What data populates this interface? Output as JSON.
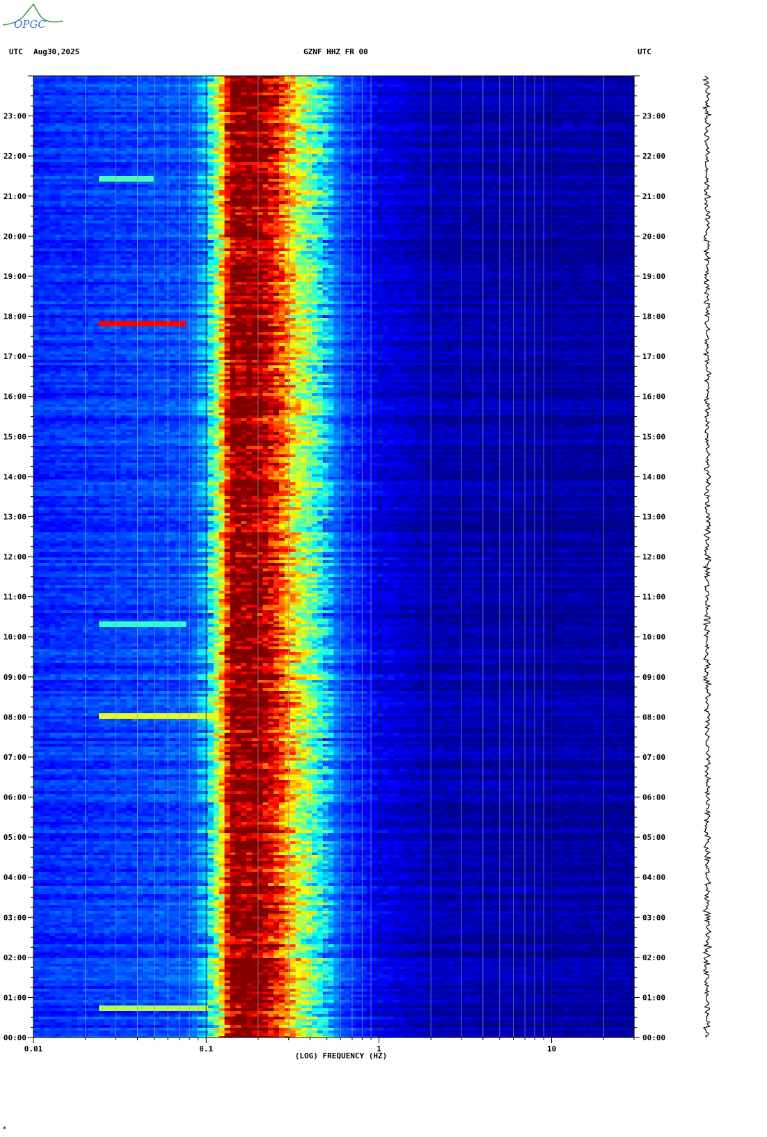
{
  "logo": {
    "text": "OPGC",
    "colors": {
      "peak": "#2e9a3a",
      "text": "#3a6fd0"
    }
  },
  "header": {
    "left_tz": "UTC",
    "date": "Aug30,2025",
    "station": "GZNF HHZ FR 00",
    "right_tz": "UTC"
  },
  "corner_mark": "*",
  "chart_data": {
    "type": "heatmap",
    "title": "GZNF HHZ FR 00",
    "xlabel": "(LOG) FREQUENCY (HZ)",
    "x_scale": "log",
    "x_range_hz": [
      0.01,
      30
    ],
    "x_ticks": [
      {
        "value": 0.01,
        "label": "0.01"
      },
      {
        "value": 0.1,
        "label": "0.1"
      },
      {
        "value": 1,
        "label": "1"
      },
      {
        "value": 10,
        "label": "10"
      }
    ],
    "y_range_hours": [
      0,
      24
    ],
    "y_ticks": [
      "00:00",
      "01:00",
      "02:00",
      "03:00",
      "04:00",
      "05:00",
      "06:00",
      "07:00",
      "08:00",
      "09:00",
      "10:00",
      "11:00",
      "12:00",
      "13:00",
      "14:00",
      "15:00",
      "16:00",
      "17:00",
      "18:00",
      "19:00",
      "20:00",
      "21:00",
      "22:00",
      "23:00"
    ],
    "colormap": [
      "#00008b",
      "#0000ff",
      "#0080ff",
      "#00ffff",
      "#80ff80",
      "#ffff00",
      "#ff8000",
      "#ff0000",
      "#800000"
    ],
    "spectral_profile": [
      {
        "freq_hz": 0.01,
        "level": 0.16
      },
      {
        "freq_hz": 0.08,
        "level": 0.2
      },
      {
        "freq_hz": 0.1,
        "level": 0.3
      },
      {
        "freq_hz": 0.12,
        "level": 0.58
      },
      {
        "freq_hz": 0.14,
        "level": 1.0
      },
      {
        "freq_hz": 0.2,
        "level": 1.0
      },
      {
        "freq_hz": 0.26,
        "level": 0.84
      },
      {
        "freq_hz": 0.33,
        "level": 0.62
      },
      {
        "freq_hz": 0.45,
        "level": 0.4
      },
      {
        "freq_hz": 0.6,
        "level": 0.2
      },
      {
        "freq_hz": 1.0,
        "level": 0.1
      },
      {
        "freq_hz": 2.0,
        "level": 0.04
      },
      {
        "freq_hz": 30,
        "level": 0.02
      }
    ],
    "transient_events": [
      {
        "time_hours": 0.75,
        "freq_range_hz": [
          0.024,
          0.1
        ],
        "level": 0.55
      },
      {
        "time_hours": 8.0,
        "freq_range_hz": [
          0.024,
          0.12
        ],
        "level": 0.6
      },
      {
        "time_hours": 10.3,
        "freq_range_hz": [
          0.024,
          0.075
        ],
        "level": 0.42
      },
      {
        "time_hours": 17.85,
        "freq_range_hz": [
          0.024,
          0.075
        ],
        "level": 0.88
      },
      {
        "time_hours": 21.4,
        "freq_range_hz": [
          0.024,
          0.05
        ],
        "level": 0.45
      }
    ],
    "grid": true,
    "trace_panel": "right"
  }
}
